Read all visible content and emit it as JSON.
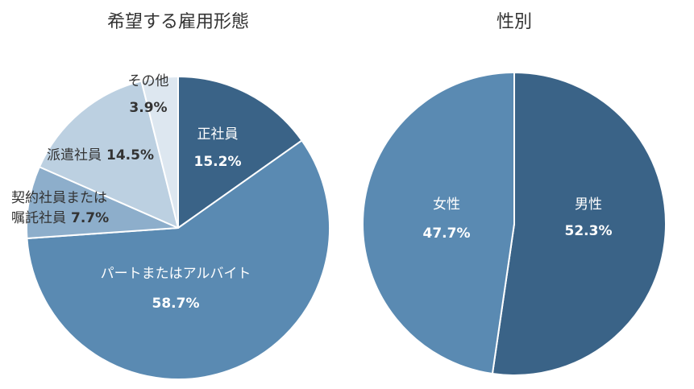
{
  "chart_data": [
    {
      "type": "pie",
      "title": "希望する雇用形態",
      "slices": [
        {
          "name": "正社員",
          "value": 15.2,
          "display": "15.2%",
          "color": "#3a6387"
        },
        {
          "name": "パートまたはアルバイト",
          "value": 58.7,
          "display": "58.7%",
          "color": "#5a8ab2"
        },
        {
          "name": "契約社員または嘱託社員",
          "name_lines": [
            "契約社員または",
            "嘱託社員"
          ],
          "value": 7.7,
          "display": "7.7%",
          "color": "#8daecb"
        },
        {
          "name": "派遣社員",
          "value": 14.5,
          "display": "14.5%",
          "color": "#bcd0e1"
        },
        {
          "name": "その他",
          "value": 3.9,
          "display": "3.9%",
          "color": "#dde7f0"
        }
      ]
    },
    {
      "type": "pie",
      "title": "性別",
      "slices": [
        {
          "name": "男性",
          "value": 52.3,
          "display": "52.3%",
          "color": "#3a6387"
        },
        {
          "name": "女性",
          "value": 47.7,
          "display": "47.7%",
          "color": "#5a8ab2"
        }
      ]
    }
  ],
  "colors": {
    "text_light": "#ffffff",
    "text_dark": "#333333",
    "separator": "#ffffff"
  }
}
